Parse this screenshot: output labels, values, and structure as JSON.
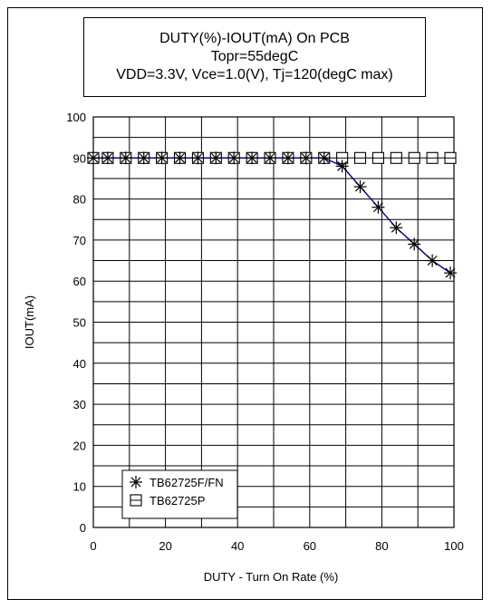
{
  "colors": {
    "line": "#000080",
    "grid": "#000000",
    "marker": "#000000"
  },
  "chart_data": {
    "type": "line",
    "title_lines": [
      "DUTY(%)-IOUT(mA) On PCB",
      "Topr=55degC",
      "VDD=3.3V, Vce=1.0(V), Tj=120(degC max)"
    ],
    "xlabel": "DUTY - Turn On Rate (%)",
    "ylabel": "IOUT(mA)",
    "xlim": [
      0,
      100
    ],
    "ylim": [
      0,
      100
    ],
    "x_ticks": [
      "0",
      "20",
      "40",
      "60",
      "80",
      "100"
    ],
    "y_ticks": [
      "0",
      "10",
      "20",
      "30",
      "40",
      "50",
      "60",
      "70",
      "80",
      "90",
      "100"
    ],
    "grid": true,
    "legend_position": "bottom-left",
    "series": [
      {
        "name": "TB62725F/FN",
        "marker": "asterisk",
        "x": [
          0,
          4,
          9,
          14,
          19,
          24,
          29,
          34,
          39,
          44,
          49,
          54,
          59,
          64,
          69,
          74,
          79,
          84,
          89,
          94,
          99
        ],
        "y": [
          90,
          90,
          90,
          90,
          90,
          90,
          90,
          90,
          90,
          90,
          90,
          90,
          90,
          90,
          88,
          83,
          78,
          73,
          69,
          65,
          62
        ]
      },
      {
        "name": "TB62725P",
        "marker": "square",
        "x": [
          0,
          4,
          9,
          14,
          19,
          24,
          29,
          34,
          39,
          44,
          49,
          54,
          59,
          64,
          69,
          74,
          79,
          84,
          89,
          94,
          99
        ],
        "y": [
          90,
          90,
          90,
          90,
          90,
          90,
          90,
          90,
          90,
          90,
          90,
          90,
          90,
          90,
          90,
          90,
          90,
          90,
          90,
          90,
          90
        ]
      }
    ]
  }
}
